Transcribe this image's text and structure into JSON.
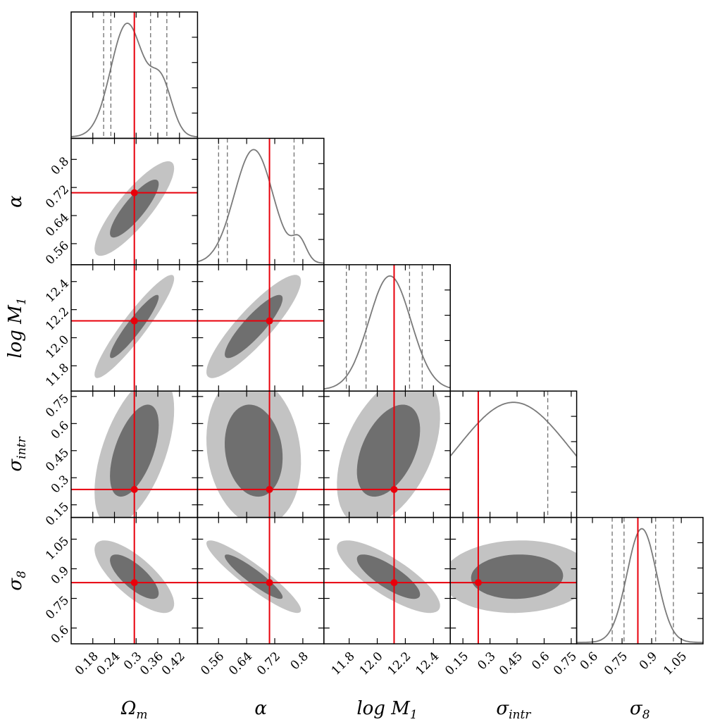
{
  "chart_data": {
    "type": "corner-plot",
    "parameters": [
      {
        "key": "om",
        "label": "Ω",
        "label_sub": "m",
        "ticks": [
          "0.18",
          "0.24",
          "0.3",
          "0.36",
          "0.42"
        ],
        "tick_values": [
          0.18,
          0.24,
          0.3,
          0.36,
          0.42
        ],
        "range": [
          0.12,
          0.47
        ],
        "true": 0.295,
        "quantiles": [
          0.21,
          0.23,
          0.34,
          0.385
        ]
      },
      {
        "key": "alpha",
        "label": "α",
        "label_sub": "",
        "ticks": [
          "0.56",
          "0.64",
          "0.72",
          "0.8"
        ],
        "tick_values": [
          0.56,
          0.64,
          0.72,
          0.8
        ],
        "range": [
          0.5,
          0.86
        ],
        "true": 0.705,
        "quantiles": [
          0.56,
          0.585,
          0.705,
          0.775
        ]
      },
      {
        "key": "logm1",
        "label": "log M",
        "label_sub": "1",
        "ticks": [
          "11.8",
          "12.0",
          "12.2",
          "12.4"
        ],
        "tick_values": [
          11.8,
          12.0,
          12.2,
          12.4
        ],
        "range": [
          11.62,
          12.52
        ],
        "true": 12.12,
        "quantiles": [
          11.78,
          11.92,
          12.23,
          12.32
        ]
      },
      {
        "key": "sigma_intr",
        "label": "σ",
        "label_sub": "intr",
        "ticks": [
          "0.15",
          "0.3",
          "0.45",
          "0.6",
          "0.75"
        ],
        "tick_values": [
          0.15,
          0.3,
          0.45,
          0.6,
          0.75
        ],
        "range": [
          0.08,
          0.78
        ],
        "true": 0.235,
        "quantiles": [
          0.235,
          0.62
        ]
      },
      {
        "key": "sigma8",
        "label": "σ",
        "label_sub": "8",
        "ticks": [
          "0.6",
          "0.75",
          "0.9",
          "1.05"
        ],
        "tick_values": [
          0.6,
          0.75,
          0.9,
          1.05
        ],
        "range": [
          0.52,
          1.16
        ],
        "true": 0.83,
        "quantiles": [
          0.7,
          0.76,
          0.92,
          1.01
        ]
      }
    ],
    "marginal_peaks": {
      "om": 0.275,
      "alpha": 0.66,
      "logm1": 12.09,
      "sigma_intr": 0.43,
      "sigma8": 0.85
    },
    "contour_levels": [
      "68%",
      "95%"
    ],
    "colors": {
      "contour_inner": "#6f6f6f",
      "contour_outer": "#c3c3c3",
      "marginal_line": "#7a7a7a",
      "quantile_line": "#707070",
      "truth": "#e8000b"
    }
  }
}
